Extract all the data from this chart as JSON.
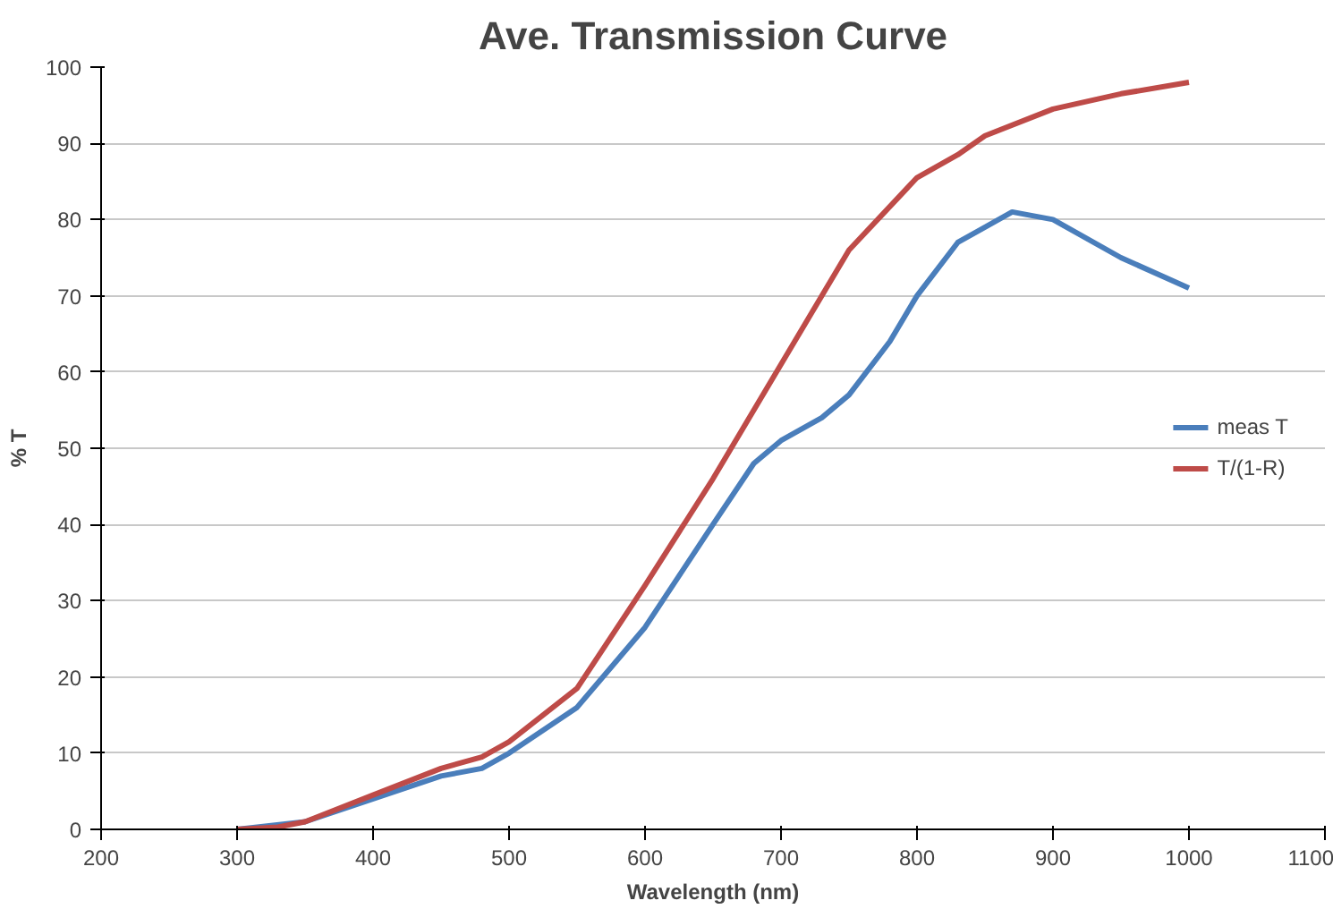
{
  "chart_data": {
    "type": "line",
    "title": "Ave. Transmission Curve",
    "xlabel": "Wavelength (nm)",
    "ylabel": "% T",
    "xlim": [
      200,
      1100
    ],
    "xticks": [
      200,
      300,
      400,
      500,
      600,
      700,
      800,
      900,
      1000,
      1100
    ],
    "ylim": [
      0,
      100
    ],
    "yticks": [
      0,
      10,
      20,
      30,
      40,
      50,
      60,
      70,
      80,
      90,
      100
    ],
    "grid": "y",
    "legend": "right",
    "marker": "none",
    "line_style": "solid",
    "series": [
      {
        "name": "meas T",
        "color": "#4a7ebb",
        "x": [
          300,
          350,
          400,
          450,
          480,
          500,
          550,
          600,
          650,
          680,
          700,
          730,
          750,
          780,
          800,
          830,
          870,
          900,
          950,
          1000
        ],
        "values": [
          0,
          1,
          4,
          7,
          8,
          10,
          16,
          26.5,
          40,
          48,
          51,
          54,
          57,
          64,
          70,
          77,
          81,
          80,
          75,
          71
        ]
      },
      {
        "name": "T/(1-R)",
        "color": "#be4b48",
        "x": [
          300,
          330,
          350,
          400,
          450,
          480,
          500,
          550,
          600,
          650,
          700,
          750,
          800,
          830,
          850,
          900,
          950,
          1000
        ],
        "values": [
          0,
          0.3,
          1,
          4.5,
          8,
          9.5,
          11.5,
          18.5,
          32,
          46,
          61,
          76,
          85.5,
          88.5,
          91,
          94.5,
          96.5,
          98
        ]
      }
    ]
  }
}
